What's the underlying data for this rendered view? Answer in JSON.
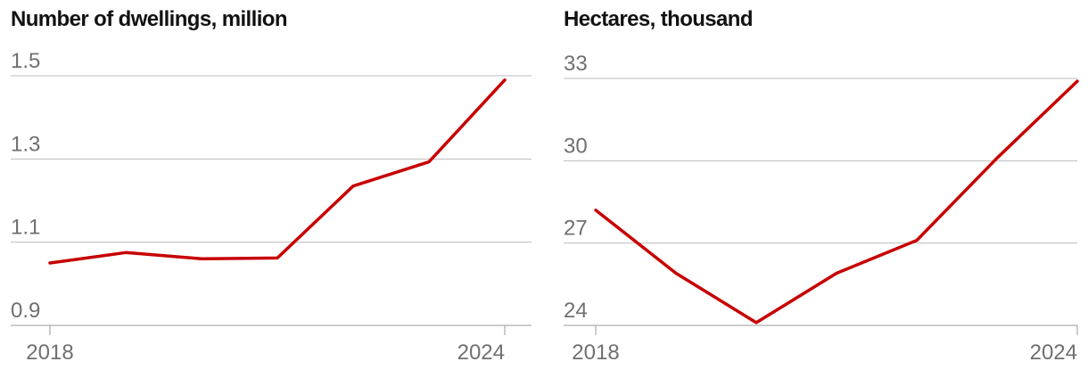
{
  "chart_data": [
    {
      "type": "line",
      "title": "Number of dwellings, million",
      "xlabel": "",
      "ylabel": "",
      "x": [
        2018,
        2019,
        2020,
        2021,
        2022,
        2023,
        2024
      ],
      "series": [
        {
          "values": [
            1.05,
            1.075,
            1.06,
            1.062,
            1.235,
            1.293,
            1.49
          ]
        }
      ],
      "ylim": [
        0.9,
        1.5
      ],
      "yticks": [
        0.9,
        1.1,
        1.3,
        1.5
      ],
      "ytick_labels": [
        "0.9",
        "1.1",
        "1.3",
        "1.5"
      ],
      "xlim": [
        2018,
        2024
      ],
      "xtick_labels": [
        "2018",
        "2024"
      ],
      "grid": true,
      "color": "#c70000"
    },
    {
      "type": "line",
      "title": "Hectares, thousand",
      "xlabel": "",
      "ylabel": "",
      "x": [
        2018,
        2019,
        2020,
        2021,
        2022,
        2023,
        2024
      ],
      "series": [
        {
          "values": [
            28.2,
            25.9,
            24.1,
            25.9,
            27.1,
            30.1,
            32.9
          ]
        }
      ],
      "ylim": [
        24,
        33
      ],
      "yticks": [
        24,
        27,
        30,
        33
      ],
      "ytick_labels": [
        "24",
        "27",
        "30",
        "33"
      ],
      "xlim": [
        2018,
        2024
      ],
      "xtick_labels": [
        "2018",
        "2024"
      ],
      "grid": true,
      "color": "#c70000"
    }
  ]
}
